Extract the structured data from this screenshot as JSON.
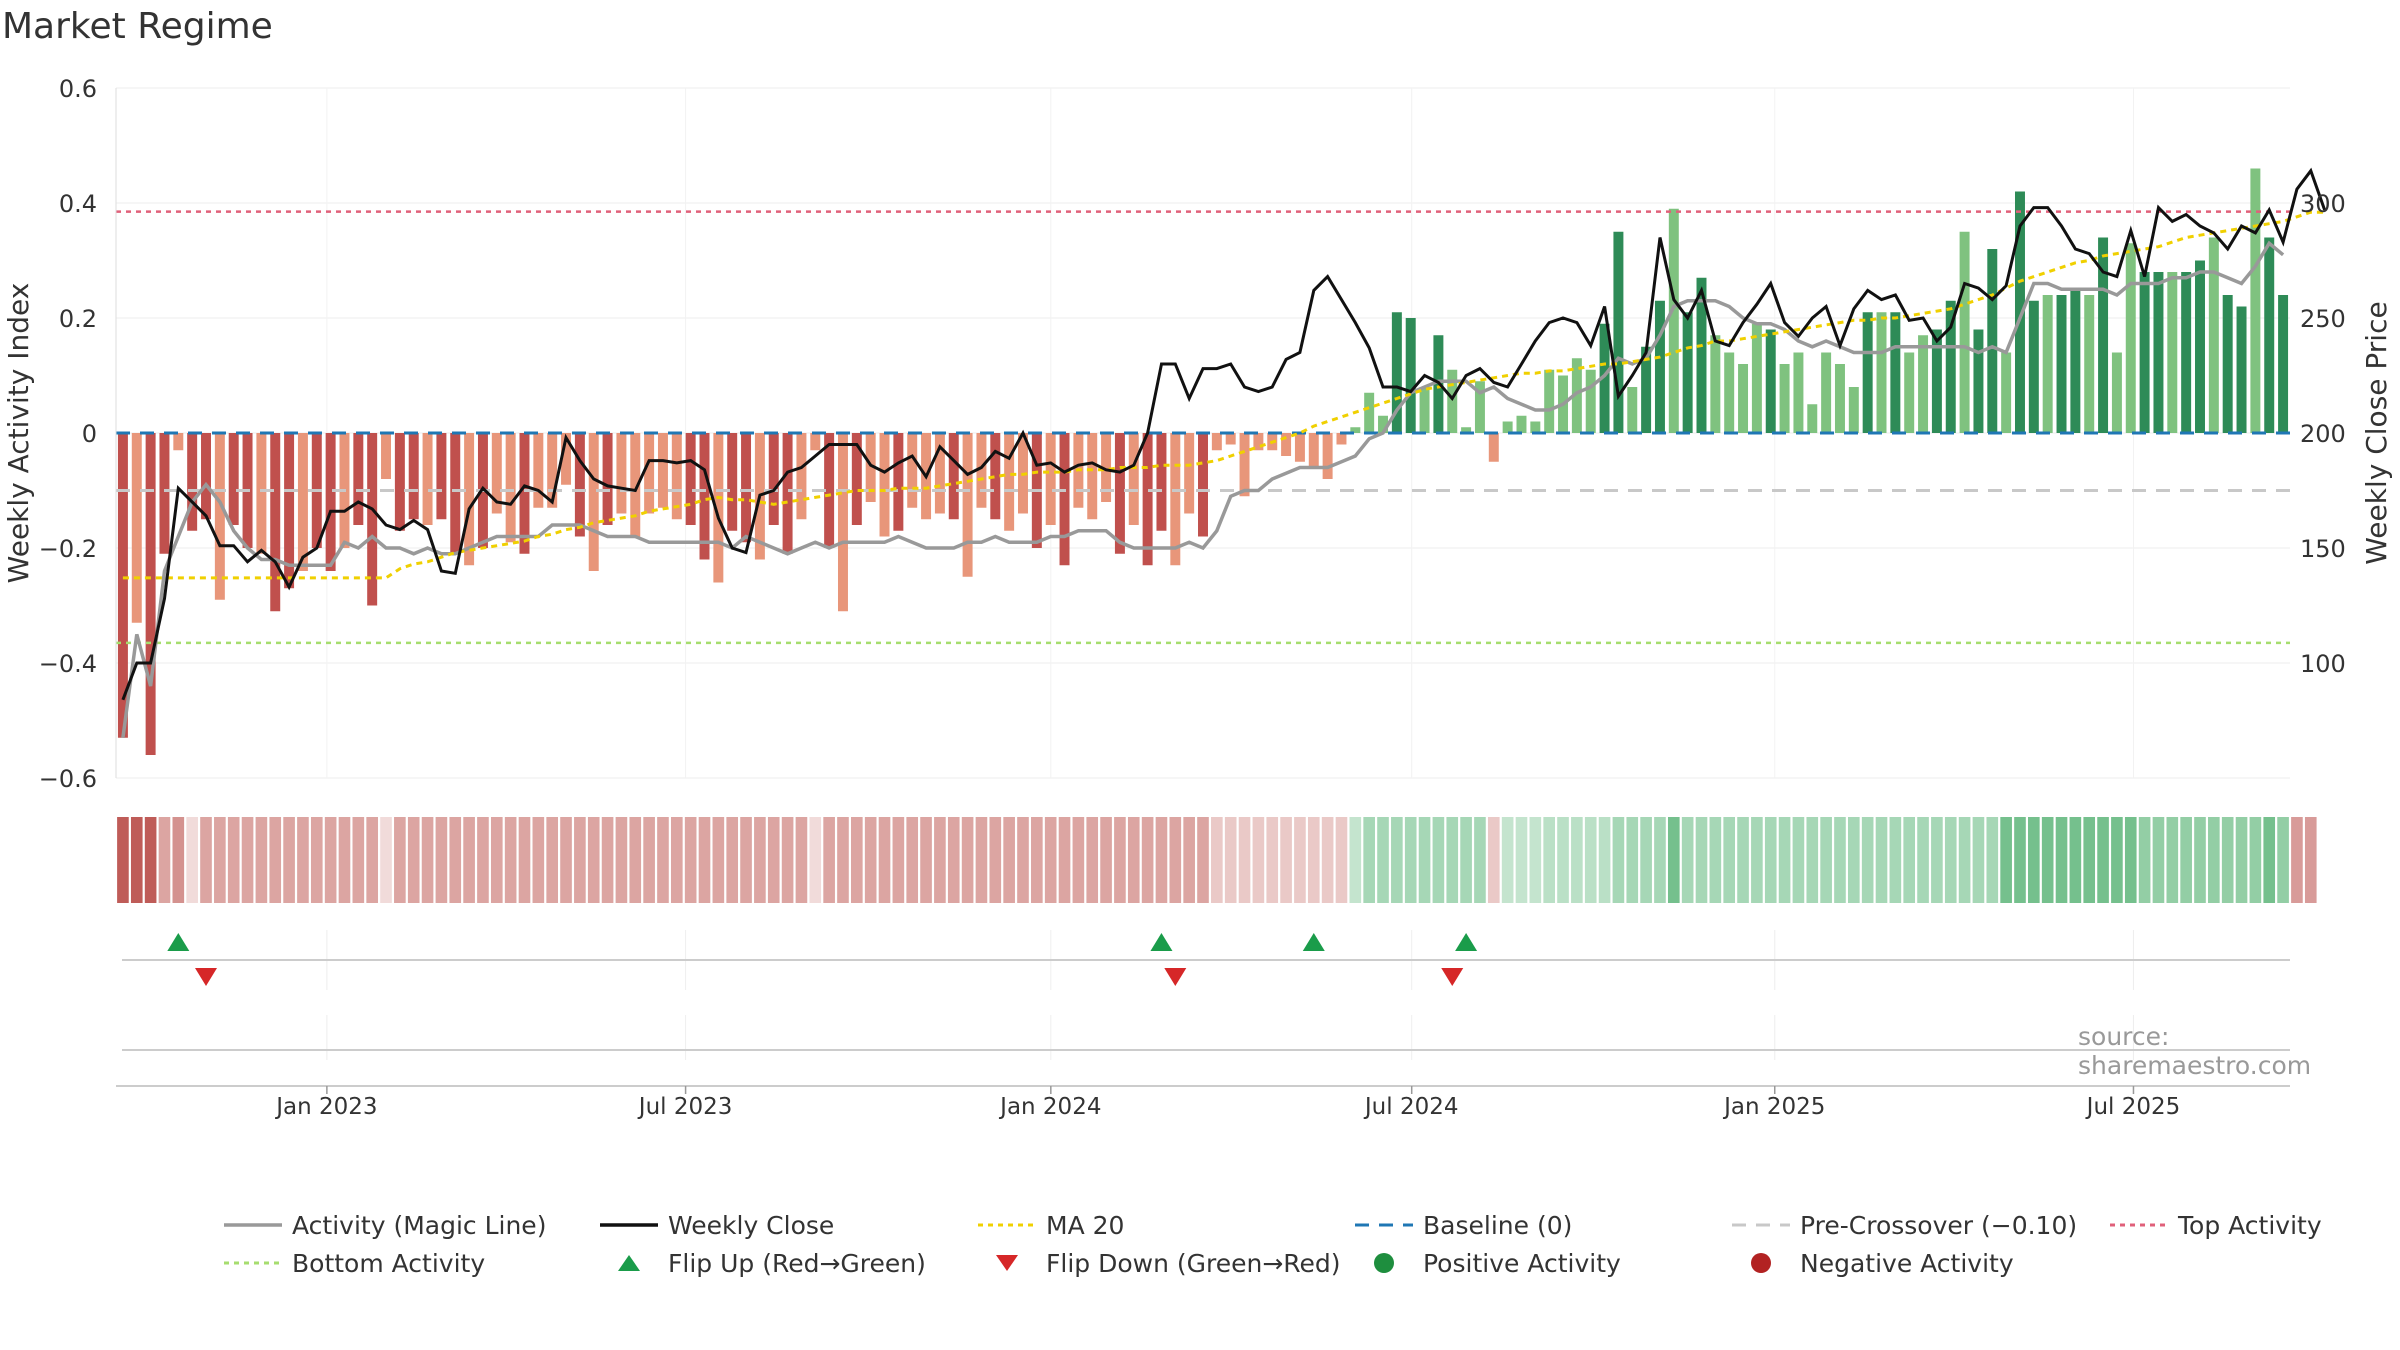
{
  "title": "Market Regime",
  "source": "source: sharemaestro.com",
  "chart_data": {
    "type": "bar",
    "subtype": "bar+line, dual axis, with regime strip and flip-signal panel",
    "x_tick_labels": [
      "Jan 2023",
      "Jul 2023",
      "Jan 2024",
      "Jul 2024",
      "Jan 2025",
      "Jul 2025"
    ],
    "left_axis": {
      "label": "Weekly Activity Index",
      "ylim": [
        -0.6,
        0.6
      ],
      "ticks": [
        -0.6,
        -0.4,
        -0.2,
        0,
        0.2,
        0.4,
        0.6
      ],
      "tick_labels": [
        "−0.6",
        "−0.4",
        "−0.2",
        "0",
        "0.2",
        "0.4",
        "0.6"
      ]
    },
    "right_axis": {
      "label": "Weekly Close Price",
      "ylim": [
        50,
        310
      ],
      "ticks": [
        100,
        150,
        200,
        250,
        300
      ],
      "tick_labels": [
        "100",
        "150",
        "200",
        "250",
        "300"
      ]
    },
    "reference_lines": {
      "baseline": 0,
      "pre_crossover": -0.1,
      "top_activity": 0.385,
      "bottom_activity": -0.365
    },
    "weeks_start": "2022-10-17",
    "activity": [
      -0.53,
      -0.33,
      -0.56,
      -0.21,
      -0.03,
      -0.17,
      -0.15,
      -0.29,
      -0.16,
      -0.2,
      -0.21,
      -0.31,
      -0.27,
      -0.24,
      -0.2,
      -0.24,
      -0.2,
      -0.16,
      -0.3,
      -0.08,
      -0.17,
      -0.15,
      -0.16,
      -0.15,
      -0.21,
      -0.23,
      -0.2,
      -0.14,
      -0.19,
      -0.21,
      -0.13,
      -0.13,
      -0.09,
      -0.18,
      -0.24,
      -0.16,
      -0.14,
      -0.18,
      -0.14,
      -0.13,
      -0.15,
      -0.16,
      -0.22,
      -0.26,
      -0.17,
      -0.19,
      -0.22,
      -0.16,
      -0.21,
      -0.15,
      -0.03,
      -0.2,
      -0.31,
      -0.16,
      -0.12,
      -0.18,
      -0.17,
      -0.13,
      -0.15,
      -0.14,
      -0.15,
      -0.25,
      -0.13,
      -0.15,
      -0.17,
      -0.14,
      -0.2,
      -0.16,
      -0.23,
      -0.13,
      -0.15,
      -0.12,
      -0.21,
      -0.16,
      -0.23,
      -0.17,
      -0.23,
      -0.14,
      -0.18,
      -0.03,
      -0.02,
      -0.11,
      -0.03,
      -0.03,
      -0.04,
      -0.05,
      -0.06,
      -0.08,
      -0.02,
      0.01,
      0.07,
      0.03,
      0.21,
      0.2,
      0.08,
      0.17,
      0.11,
      0.01,
      0.09,
      -0.05,
      0.02,
      0.03,
      0.02,
      0.11,
      0.1,
      0.13,
      0.11,
      0.19,
      0.35,
      0.08,
      0.15,
      0.23,
      0.39,
      0.21,
      0.27,
      0.17,
      0.14,
      0.12,
      0.19,
      0.18,
      0.12,
      0.14,
      0.05,
      0.14,
      0.12,
      0.08,
      0.21,
      0.21,
      0.21,
      0.14,
      0.17,
      0.18,
      0.23,
      0.35,
      0.18,
      0.32,
      0.14,
      0.42,
      0.23,
      0.24,
      0.24,
      0.25,
      0.24,
      0.34,
      0.14,
      0.33,
      0.28,
      0.28,
      0.28,
      0.28,
      0.3,
      0.34,
      0.24,
      0.22,
      0.46,
      0.34,
      0.24
    ],
    "activity_line_magic": [
      -0.53,
      -0.35,
      -0.44,
      -0.24,
      -0.18,
      -0.12,
      -0.09,
      -0.12,
      -0.17,
      -0.2,
      -0.22,
      -0.22,
      -0.23,
      -0.23,
      -0.23,
      -0.23,
      -0.19,
      -0.2,
      -0.18,
      -0.2,
      -0.2,
      -0.21,
      -0.2,
      -0.21,
      -0.21,
      -0.2,
      -0.19,
      -0.18,
      -0.18,
      -0.18,
      -0.18,
      -0.16,
      -0.16,
      -0.16,
      -0.17,
      -0.18,
      -0.18,
      -0.18,
      -0.19,
      -0.19,
      -0.19,
      -0.19,
      -0.19,
      -0.19,
      -0.2,
      -0.18,
      -0.19,
      -0.2,
      -0.21,
      -0.2,
      -0.19,
      -0.2,
      -0.19,
      -0.19,
      -0.19,
      -0.19,
      -0.18,
      -0.19,
      -0.2,
      -0.2,
      -0.2,
      -0.19,
      -0.19,
      -0.18,
      -0.19,
      -0.19,
      -0.19,
      -0.18,
      -0.18,
      -0.17,
      -0.17,
      -0.17,
      -0.19,
      -0.2,
      -0.2,
      -0.2,
      -0.2,
      -0.19,
      -0.2,
      -0.17,
      -0.11,
      -0.1,
      -0.1,
      -0.08,
      -0.07,
      -0.06,
      -0.06,
      -0.06,
      -0.05,
      -0.04,
      -0.01,
      0.0,
      0.04,
      0.07,
      0.08,
      0.09,
      0.09,
      0.09,
      0.07,
      0.08,
      0.06,
      0.05,
      0.04,
      0.04,
      0.05,
      0.07,
      0.08,
      0.1,
      0.13,
      0.12,
      0.13,
      0.17,
      0.22,
      0.23,
      0.23,
      0.23,
      0.22,
      0.2,
      0.19,
      0.19,
      0.18,
      0.16,
      0.15,
      0.16,
      0.15,
      0.14,
      0.14,
      0.14,
      0.15,
      0.15,
      0.15,
      0.15,
      0.15,
      0.15,
      0.14,
      0.15,
      0.14,
      0.2,
      0.26,
      0.26,
      0.25,
      0.25,
      0.25,
      0.25,
      0.24,
      0.26,
      0.26,
      0.26,
      0.27,
      0.27,
      0.28,
      0.28,
      0.27,
      0.26,
      0.29,
      0.33,
      0.31
    ],
    "weekly_close": [
      84,
      100,
      100,
      128,
      176,
      170,
      164,
      151,
      151,
      144,
      149,
      144,
      133,
      146,
      150,
      166,
      166,
      170,
      167,
      160,
      158,
      162,
      158,
      140,
      139,
      167,
      176,
      170,
      169,
      177,
      175,
      170,
      198,
      188,
      180,
      177,
      176,
      175,
      188,
      188,
      187,
      188,
      184,
      163,
      150,
      148,
      173,
      175,
      183,
      185,
      190,
      195,
      195,
      195,
      186,
      183,
      187,
      190,
      181,
      194,
      188,
      182,
      185,
      192,
      189,
      200,
      186,
      187,
      183,
      186,
      187,
      184,
      183,
      186,
      200,
      230,
      230,
      215,
      228,
      228,
      230,
      220,
      218,
      220,
      232,
      235,
      262,
      268,
      258,
      248,
      237,
      220,
      220,
      218,
      225,
      222,
      215,
      225,
      228,
      222,
      220,
      230,
      240,
      248,
      250,
      248,
      238,
      255,
      216,
      225,
      235,
      285,
      258,
      250,
      262,
      240,
      238,
      248,
      256,
      265,
      248,
      242,
      250,
      255,
      238,
      254,
      262,
      258,
      260,
      249,
      250,
      240,
      246,
      265,
      263,
      258,
      264,
      290,
      298,
      298,
      290,
      280,
      278,
      270,
      268,
      288,
      268,
      298,
      292,
      295,
      290,
      287,
      280,
      290,
      287,
      297,
      283,
      306,
      314,
      297
    ],
    "ma_20": [
      137,
      137,
      137,
      137,
      137,
      137,
      137,
      137,
      137,
      137,
      137,
      137,
      137,
      137,
      137,
      137,
      137,
      137,
      137,
      137,
      141,
      143,
      144,
      146,
      148,
      149,
      150,
      151,
      152,
      153,
      155,
      156,
      158,
      159,
      161,
      162,
      163,
      164,
      166,
      167,
      168,
      169,
      171,
      172,
      171,
      171,
      170,
      169,
      170,
      171,
      172,
      173,
      174,
      175,
      175,
      175,
      176,
      176,
      176,
      177,
      178,
      179,
      180,
      181,
      182,
      182,
      183,
      183,
      183,
      184,
      184,
      184,
      185,
      185,
      185,
      186,
      186,
      186,
      187,
      188,
      190,
      192,
      194,
      196,
      198,
      200,
      203,
      205,
      207,
      209,
      211,
      213,
      215,
      217,
      219,
      220,
      221,
      222,
      223,
      224,
      225,
      226,
      226,
      227,
      227,
      228,
      229,
      230,
      230,
      231,
      232,
      233,
      235,
      237,
      238,
      240,
      240,
      241,
      242,
      243,
      244,
      245,
      246,
      247,
      248,
      249,
      249,
      250,
      250,
      251,
      252,
      253,
      254,
      256,
      258,
      260,
      263,
      266,
      268,
      270,
      272,
      274,
      275,
      277,
      278,
      279,
      280,
      281,
      283,
      285,
      286,
      287,
      288,
      289,
      290,
      291,
      292,
      294,
      296,
      296
    ],
    "regime_strip_strength": [
      0.9,
      0.9,
      0.9,
      0.5,
      0.6,
      0.2,
      0.5,
      0.5,
      0.5,
      0.5,
      0.5,
      0.5,
      0.5,
      0.5,
      0.5,
      0.5,
      0.5,
      0.5,
      0.5,
      0.2,
      0.5,
      0.5,
      0.5,
      0.5,
      0.5,
      0.5,
      0.5,
      0.5,
      0.5,
      0.5,
      0.5,
      0.5,
      0.5,
      0.5,
      0.5,
      0.5,
      0.5,
      0.5,
      0.5,
      0.5,
      0.5,
      0.5,
      0.5,
      0.5,
      0.5,
      0.5,
      0.5,
      0.5,
      0.5,
      0.5,
      0.2,
      0.5,
      0.5,
      0.5,
      0.5,
      0.5,
      0.5,
      0.5,
      0.5,
      0.5,
      0.5,
      0.5,
      0.5,
      0.5,
      0.5,
      0.5,
      0.5,
      0.5,
      0.5,
      0.5,
      0.5,
      0.5,
      0.5,
      0.5,
      0.5,
      0.5,
      0.5,
      0.5,
      0.5,
      0.3,
      0.3,
      0.3,
      0.3,
      0.3,
      0.3,
      0.3,
      0.3,
      0.3,
      0.3,
      0.3,
      0.45,
      0.45,
      0.45,
      0.45,
      0.45,
      0.45,
      0.45,
      0.45,
      0.45,
      0.3,
      0.3,
      0.3,
      0.3,
      0.35,
      0.35,
      0.35,
      0.35,
      0.35,
      0.45,
      0.45,
      0.45,
      0.45,
      0.7,
      0.45,
      0.45,
      0.45,
      0.45,
      0.45,
      0.45,
      0.45,
      0.45,
      0.45,
      0.45,
      0.45,
      0.45,
      0.45,
      0.45,
      0.45,
      0.45,
      0.45,
      0.45,
      0.45,
      0.45,
      0.45,
      0.45,
      0.45,
      0.7,
      0.7,
      0.7,
      0.7,
      0.7,
      0.7,
      0.7,
      0.7,
      0.7,
      0.7,
      0.55,
      0.55,
      0.55,
      0.55,
      0.55,
      0.55,
      0.55,
      0.55,
      0.55,
      0.7,
      0.55,
      0.55,
      0.55
    ],
    "flip_up_weeks": [
      4,
      75,
      86,
      97
    ],
    "flip_down_weeks": [
      6,
      76,
      96
    ],
    "colors": {
      "strong_negative": "#c0504d",
      "weak_negative": "#e8967a",
      "strong_positive": "#2e8b57",
      "weak_positive": "#7fc27f",
      "magic_line": "#999999",
      "weekly_close": "#111111",
      "ma_20": "#f0d000",
      "baseline": "#1f77b4",
      "pre_crossover": "#c8c8c8",
      "top_activity": "#e0607a",
      "bottom_activity": "#a6dd6e",
      "flip_up": "#1a9c4a",
      "flip_down": "#d62728",
      "positive_activity": "#1e8e3e",
      "negative_activity": "#b22222"
    }
  },
  "legend": [
    {
      "label": "Activity (Magic Line)",
      "symbol": "line",
      "key": "magic_line"
    },
    {
      "label": "Weekly Close",
      "symbol": "line",
      "key": "weekly_close"
    },
    {
      "label": "MA 20",
      "symbol": "dotted",
      "key": "ma_20"
    },
    {
      "label": "Baseline (0)",
      "symbol": "dashed",
      "key": "baseline"
    },
    {
      "label": "Pre-Crossover (−0.10)",
      "symbol": "dashed",
      "key": "pre_crossover"
    },
    {
      "label": "Top Activity",
      "symbol": "dotted",
      "key": "top_activity"
    },
    {
      "label": "Bottom Activity",
      "symbol": "dotted",
      "key": "bottom_activity"
    },
    {
      "label": "Flip Up (Red→Green)",
      "symbol": "tri-up",
      "key": "flip_up"
    },
    {
      "label": "Flip Down (Green→Red)",
      "symbol": "tri-down",
      "key": "flip_down"
    },
    {
      "label": "Positive Activity",
      "symbol": "dot",
      "key": "positive_activity"
    },
    {
      "label": "Negative Activity",
      "symbol": "dot",
      "key": "negative_activity"
    }
  ]
}
